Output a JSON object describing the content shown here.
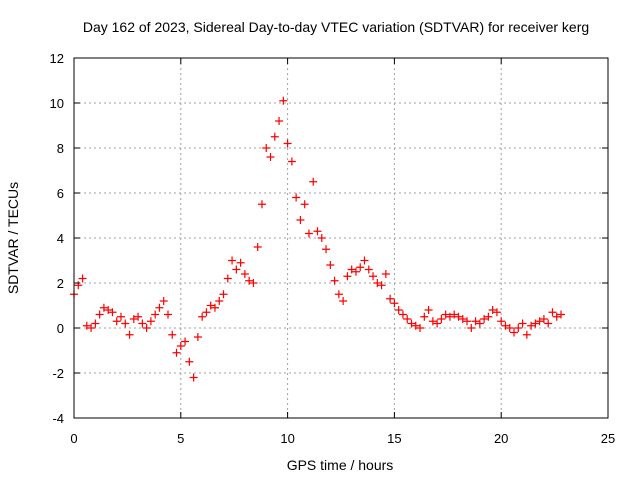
{
  "chart_data": {
    "type": "scatter",
    "title": "Day 162 of 2023, Sidereal Day-to-day VTEC variation (SDTVAR) for receiver kerg",
    "xlabel": "GPS time / hours",
    "ylabel": "SDTVAR / TECUs",
    "xlim": [
      0,
      25
    ],
    "ylim": [
      -4,
      12
    ],
    "xticks": [
      0,
      5,
      10,
      15,
      20,
      25
    ],
    "yticks": [
      -4,
      -2,
      0,
      2,
      4,
      6,
      8,
      10,
      12
    ],
    "grid": true,
    "marker": "+",
    "series_color": "#ff0000",
    "series": [
      {
        "name": "SDTVAR",
        "x": [
          0.0,
          0.2,
          0.4,
          0.6,
          0.8,
          1.0,
          1.2,
          1.4,
          1.6,
          1.8,
          2.0,
          2.2,
          2.4,
          2.6,
          2.8,
          3.0,
          3.2,
          3.4,
          3.6,
          3.8,
          4.0,
          4.2,
          4.4,
          4.6,
          4.8,
          5.0,
          5.2,
          5.4,
          5.6,
          5.8,
          6.0,
          6.2,
          6.4,
          6.6,
          6.8,
          7.0,
          7.2,
          7.4,
          7.6,
          7.8,
          8.0,
          8.2,
          8.4,
          8.6,
          8.8,
          9.0,
          9.2,
          9.4,
          9.6,
          9.8,
          10.0,
          10.2,
          10.4,
          10.6,
          10.8,
          11.0,
          11.2,
          11.4,
          11.6,
          11.8,
          12.0,
          12.2,
          12.4,
          12.6,
          12.8,
          13.0,
          13.2,
          13.4,
          13.6,
          13.8,
          14.0,
          14.2,
          14.4,
          14.6,
          14.8,
          15.0,
          15.2,
          15.4,
          15.6,
          15.8,
          16.0,
          16.2,
          16.4,
          16.6,
          16.8,
          17.0,
          17.2,
          17.4,
          17.6,
          17.8,
          18.0,
          18.2,
          18.4,
          18.6,
          18.8,
          19.0,
          19.2,
          19.4,
          19.6,
          19.8,
          20.0,
          20.2,
          20.4,
          20.6,
          20.8,
          21.0,
          21.2,
          21.4,
          21.6,
          21.8,
          22.0,
          22.2,
          22.4,
          22.6,
          22.8
        ],
        "y": [
          1.5,
          1.9,
          2.2,
          0.1,
          0.0,
          0.2,
          0.6,
          0.9,
          0.8,
          0.7,
          0.3,
          0.5,
          0.2,
          -0.3,
          0.4,
          0.5,
          0.2,
          0.0,
          0.3,
          0.6,
          0.9,
          1.2,
          0.6,
          -0.3,
          -1.1,
          -0.8,
          -0.6,
          -1.5,
          -2.2,
          -0.4,
          0.5,
          0.7,
          1.0,
          0.9,
          1.2,
          1.5,
          2.2,
          3.0,
          2.6,
          2.9,
          2.4,
          2.1,
          2.0,
          3.6,
          5.5,
          8.0,
          7.6,
          8.5,
          9.2,
          10.1,
          8.2,
          7.4,
          5.8,
          4.8,
          5.5,
          4.2,
          6.5,
          4.3,
          4.0,
          3.5,
          2.8,
          2.1,
          1.5,
          1.2,
          2.3,
          2.6,
          2.5,
          2.7,
          3.0,
          2.6,
          2.3,
          2.0,
          1.9,
          2.4,
          1.3,
          1.1,
          0.8,
          0.6,
          0.4,
          0.2,
          0.1,
          0.0,
          0.5,
          0.8,
          0.3,
          0.2,
          0.4,
          0.6,
          0.5,
          0.6,
          0.5,
          0.4,
          0.3,
          0.0,
          0.3,
          0.2,
          0.4,
          0.5,
          0.8,
          0.7,
          0.3,
          0.1,
          0.0,
          -0.2,
          0.0,
          0.2,
          -0.3,
          0.1,
          0.2,
          0.3,
          0.4,
          0.2,
          0.7,
          0.5,
          0.6
        ]
      }
    ]
  }
}
